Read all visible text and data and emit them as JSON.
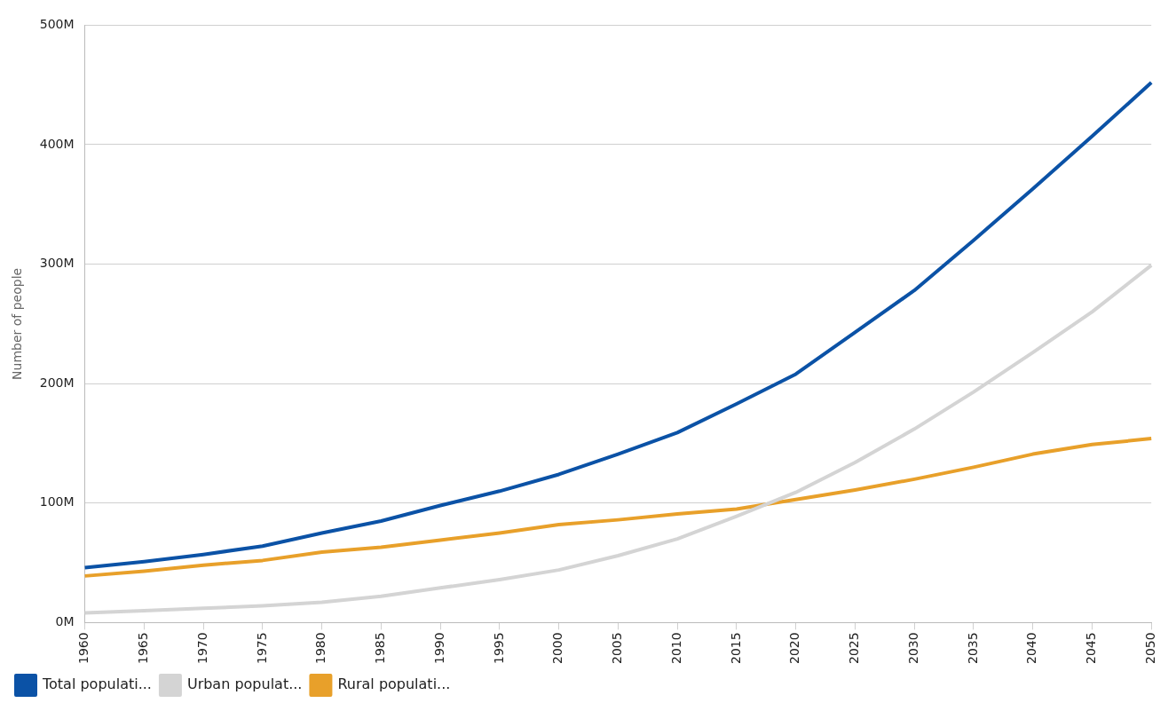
{
  "chart_data": {
    "type": "line",
    "ylabel": "Number of people",
    "categories": [
      "1960",
      "1965",
      "1970",
      "1975",
      "1980",
      "1985",
      "1990",
      "1995",
      "2000",
      "2005",
      "2010",
      "2015",
      "2020",
      "2025",
      "2030",
      "2035",
      "2040",
      "2045",
      "2050"
    ],
    "series": [
      {
        "name": "Total populati...",
        "color": "#0b52a6",
        "values": [
          46,
          51,
          57,
          64,
          75,
          85,
          98,
          110,
          124,
          141,
          159,
          183,
          208,
          243,
          278,
          320,
          363,
          407,
          452
        ]
      },
      {
        "name": "Urban populat...",
        "color": "#d4d4d4",
        "values": [
          8,
          10,
          12,
          14,
          17,
          22,
          29,
          36,
          44,
          56,
          70,
          89,
          109,
          134,
          162,
          193,
          226,
          260,
          299
        ]
      },
      {
        "name": "Rural populati...",
        "color": "#e8a02a",
        "values": [
          39,
          43,
          48,
          52,
          59,
          63,
          69,
          75,
          82,
          86,
          91,
          95,
          103,
          111,
          120,
          130,
          141,
          149,
          154
        ]
      }
    ],
    "ylim": [
      0,
      500
    ],
    "yticks": [
      {
        "value": 0,
        "label": "0M"
      },
      {
        "value": 100,
        "label": "100M"
      },
      {
        "value": 200,
        "label": "200M"
      },
      {
        "value": 300,
        "label": "300M"
      },
      {
        "value": 400,
        "label": "400M"
      },
      {
        "value": 500,
        "label": "500M"
      }
    ],
    "grid": "y",
    "legend": "bottom left",
    "marker": "none",
    "line_style": "solid"
  }
}
